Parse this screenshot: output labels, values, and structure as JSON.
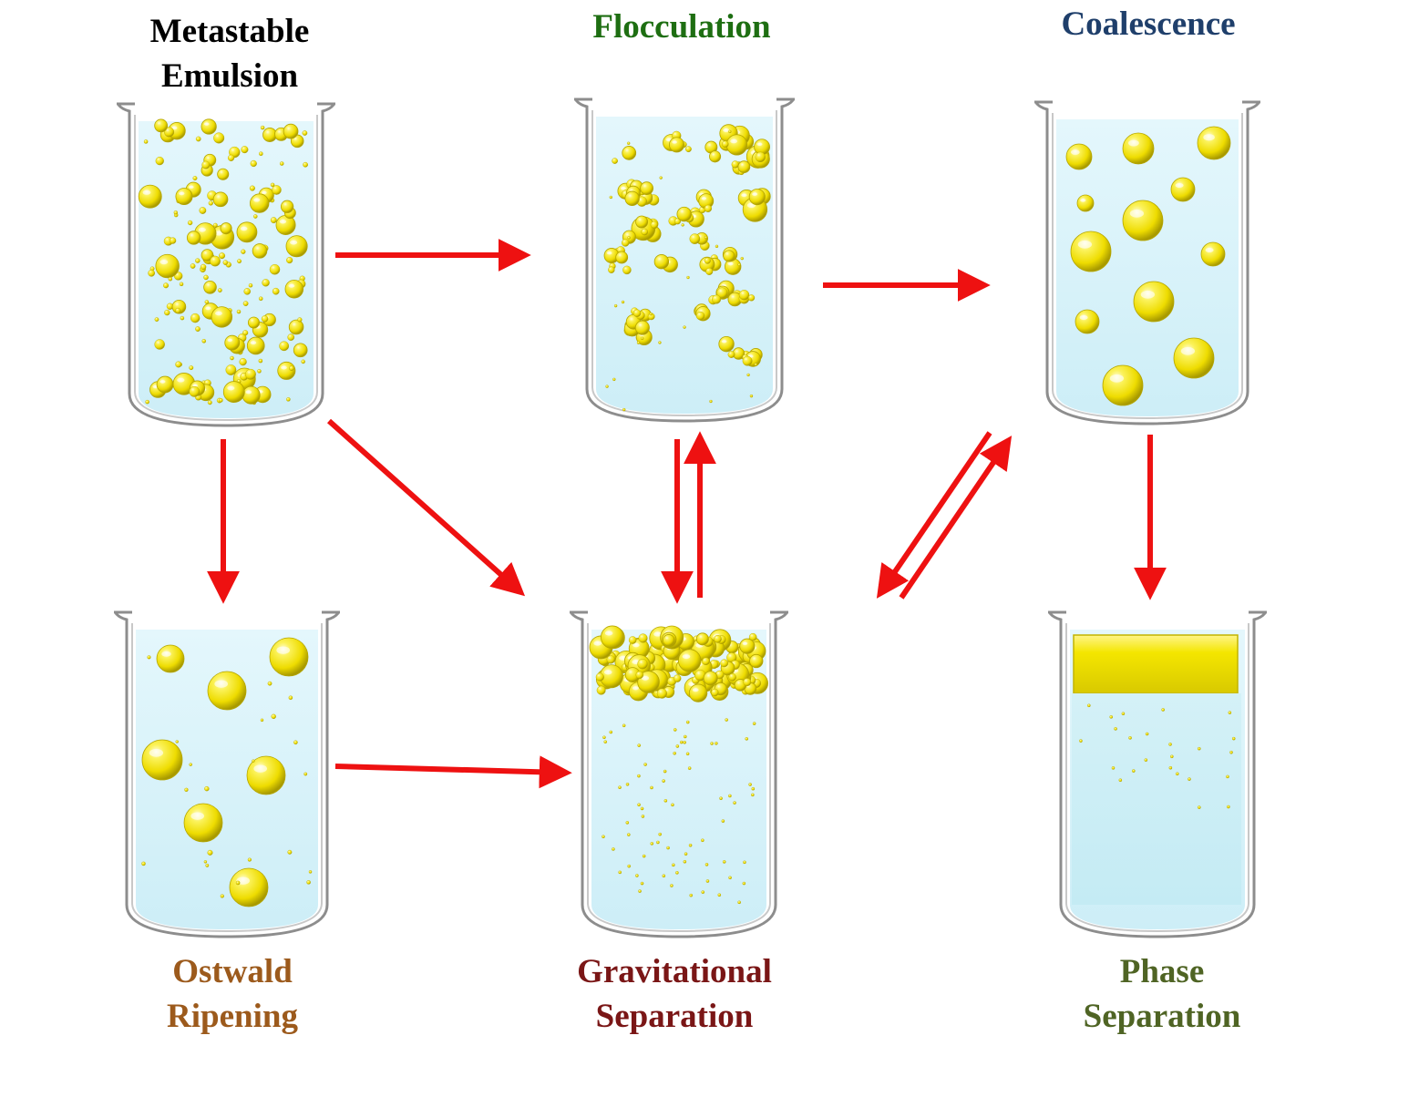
{
  "stages": {
    "metastable": {
      "line1": "Metastable",
      "line2": "Emulsion",
      "color": "#000000"
    },
    "flocculation": {
      "line1": "Flocculation",
      "color": "#1e6e12"
    },
    "coalescence": {
      "line1": "Coalescence",
      "color": "#1f3f6b"
    },
    "ostwald": {
      "line1": "Ostwald",
      "line2": "Ripening",
      "color": "#9c5a1c"
    },
    "gravitational": {
      "line1": "Gravitational",
      "line2": "Separation",
      "color": "#7a1616"
    },
    "phase": {
      "line1": "Phase",
      "line2": "Separation",
      "color": "#4f6424"
    }
  },
  "colors": {
    "arrow": "#ee1111",
    "liquid": "#dff6fb",
    "oil": "#f2e600",
    "glass": "#9a9a9a"
  },
  "transitions": [
    {
      "from": "metastable",
      "to": "flocculation"
    },
    {
      "from": "flocculation",
      "to": "coalescence"
    },
    {
      "from": "metastable",
      "to": "ostwald"
    },
    {
      "from": "metastable",
      "to": "gravitational"
    },
    {
      "from": "flocculation",
      "to": "gravitational"
    },
    {
      "from": "gravitational",
      "to": "flocculation"
    },
    {
      "from": "coalescence",
      "to": "gravitational"
    },
    {
      "from": "gravitational",
      "to": "coalescence"
    },
    {
      "from": "coalescence",
      "to": "phase"
    },
    {
      "from": "ostwald",
      "to": "gravitational"
    }
  ]
}
